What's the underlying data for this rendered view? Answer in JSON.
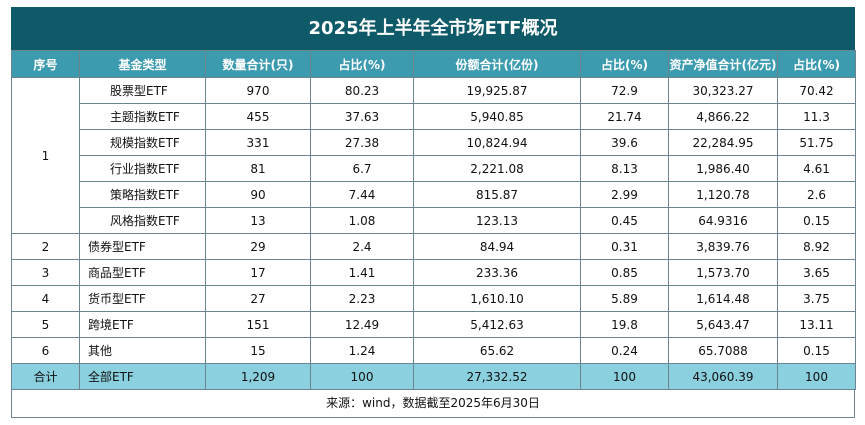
{
  "title": "2025年上半年全市场ETF概况",
  "headers": [
    "序号",
    "基金类型",
    "数量合计(只)",
    "占比(%)",
    "份额合计(亿份)",
    "占比(%)",
    "资产净值合计(亿元)",
    "占比(%)"
  ],
  "rows": [
    {
      "seq": "1",
      "type": "股票型ETF",
      "count": "970",
      "count_pct": "80.23",
      "shares": "19,925.87",
      "shares_pct": "72.9",
      "nav": "30,323.27",
      "nav_pct": "70.42"
    },
    {
      "seq": "",
      "type": "主题指数ETF",
      "count": "455",
      "count_pct": "37.63",
      "shares": "5,940.85",
      "shares_pct": "21.74",
      "nav": "4,866.22",
      "nav_pct": "11.3"
    },
    {
      "seq": "",
      "type": "规模指数ETF",
      "count": "331",
      "count_pct": "27.38",
      "shares": "10,824.94",
      "shares_pct": "39.6",
      "nav": "22,284.95",
      "nav_pct": "51.75"
    },
    {
      "seq": "",
      "type": "行业指数ETF",
      "count": "81",
      "count_pct": "6.7",
      "shares": "2,221.08",
      "shares_pct": "8.13",
      "nav": "1,986.40",
      "nav_pct": "4.61"
    },
    {
      "seq": "",
      "type": "策略指数ETF",
      "count": "90",
      "count_pct": "7.44",
      "shares": "815.87",
      "shares_pct": "2.99",
      "nav": "1,120.78",
      "nav_pct": "2.6"
    },
    {
      "seq": "",
      "type": "风格指数ETF",
      "count": "13",
      "count_pct": "1.08",
      "shares": "123.13",
      "shares_pct": "0.45",
      "nav": "64.9316",
      "nav_pct": "0.15"
    },
    {
      "seq": "2",
      "type": "债券型ETF",
      "count": "29",
      "count_pct": "2.4",
      "shares": "84.94",
      "shares_pct": "0.31",
      "nav": "3,839.76",
      "nav_pct": "8.92"
    },
    {
      "seq": "3",
      "type": "商品型ETF",
      "count": "17",
      "count_pct": "1.41",
      "shares": "233.36",
      "shares_pct": "0.85",
      "nav": "1,573.70",
      "nav_pct": "3.65"
    },
    {
      "seq": "4",
      "type": "货币型ETF",
      "count": "27",
      "count_pct": "2.23",
      "shares": "1,610.10",
      "shares_pct": "5.89",
      "nav": "1,614.48",
      "nav_pct": "3.75"
    },
    {
      "seq": "5",
      "type": "跨境ETF",
      "count": "151",
      "count_pct": "12.49",
      "shares": "5,412.63",
      "shares_pct": "19.8",
      "nav": "5,643.47",
      "nav_pct": "13.11"
    },
    {
      "seq": "6",
      "type": "其他",
      "count": "15",
      "count_pct": "1.24",
      "shares": "65.62",
      "shares_pct": "0.24",
      "nav": "65.7088",
      "nav_pct": "0.15"
    }
  ],
  "total": {
    "seq": "合计",
    "type": "全部ETF",
    "count": "1,209",
    "count_pct": "100",
    "shares": "27,332.52",
    "shares_pct": "100",
    "nav": "43,060.39",
    "nav_pct": "100"
  },
  "source": "来源：wind，数据截至2025年6月30日",
  "colors": {
    "title_bg": "#0f5a69",
    "header_bg": "#3d9bb0",
    "total_bg": "#8ad0df"
  }
}
